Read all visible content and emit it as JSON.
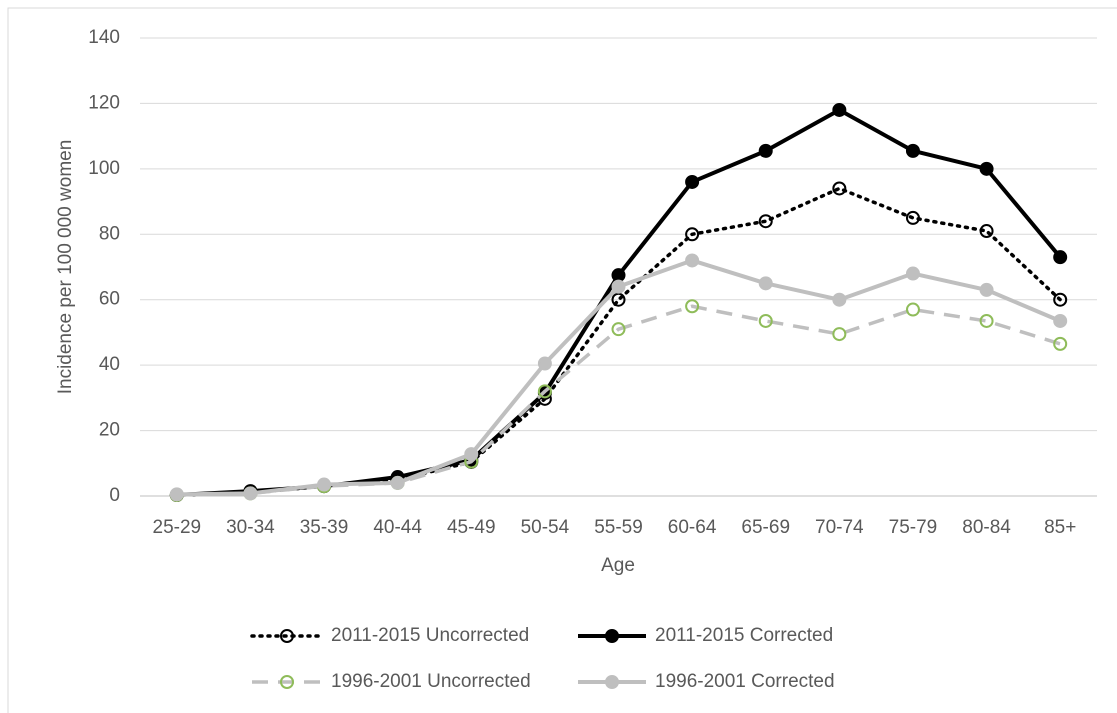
{
  "chart_data": {
    "type": "line",
    "x_label": "Age",
    "y_label": "Incidence per 100 000 women",
    "categories": [
      "25-29",
      "30-34",
      "35-39",
      "40-44",
      "45-49",
      "50-54",
      "55-59",
      "60-64",
      "65-69",
      "70-74",
      "75-79",
      "80-84",
      "85+"
    ],
    "ylim": [
      0,
      140
    ],
    "yticks": [
      0,
      20,
      40,
      60,
      80,
      100,
      120,
      140
    ],
    "grid": true,
    "series": [
      {
        "name": "2011-2015 Uncorrected",
        "color": "#000000",
        "line_style": "dotted",
        "marker_color": "#000000",
        "marker_fill": false,
        "values": [
          0.3,
          1,
          3,
          5,
          10.4,
          29.7,
          60,
          80,
          84,
          94,
          85,
          81,
          60
        ]
      },
      {
        "name": "2011-2015 Corrected",
        "color": "#000000",
        "line_style": "solid",
        "marker_color": "#000000",
        "marker_fill": true,
        "values": [
          0.3,
          1.5,
          3,
          5.8,
          11,
          31.5,
          67.5,
          96,
          105.5,
          118,
          105.5,
          100,
          73
        ]
      },
      {
        "name": "1996-2001 Uncorrected",
        "color": "#bfbfbf",
        "line_style": "dashed",
        "marker_color": "#8fbc5a",
        "marker_fill": false,
        "values": [
          0.3,
          0.8,
          3,
          4,
          10.5,
          32,
          51,
          58,
          53.5,
          49.5,
          57,
          53.5,
          46.5
        ]
      },
      {
        "name": "1996-2001 Corrected",
        "color": "#bfbfbf",
        "line_style": "solid",
        "marker_color": "#bfbfbf",
        "marker_fill": true,
        "values": [
          0.5,
          0.8,
          3.5,
          4,
          12.8,
          40.5,
          64,
          72,
          65,
          60,
          68,
          63,
          53.5
        ]
      }
    ]
  }
}
